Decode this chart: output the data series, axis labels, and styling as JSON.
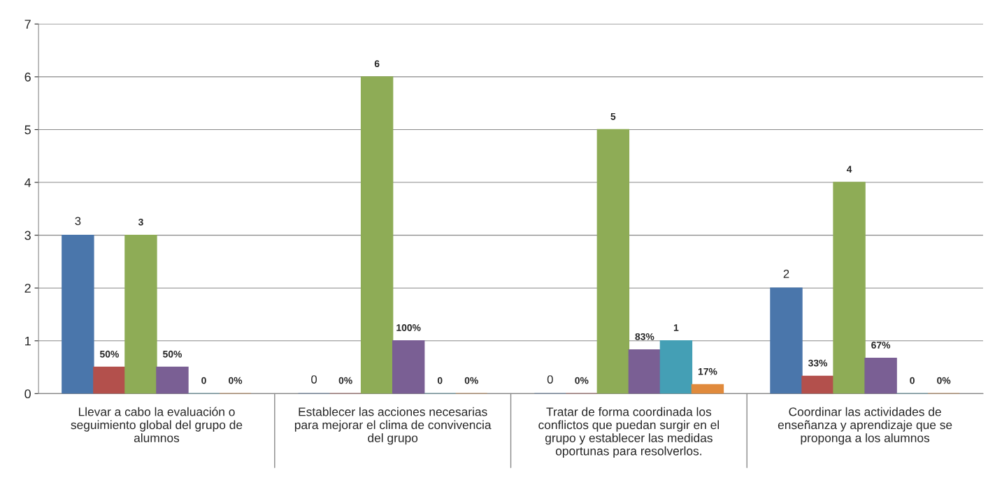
{
  "chart_data": {
    "type": "bar",
    "categories": [
      "Llevar a cabo la evaluación o\nseguimiento global del grupo de\nalumnos",
      "Establecer las acciones necesarias\npara mejorar el clima de convivencia\ndel grupo",
      "Tratar de forma coordinada los\nconflictos que puedan surgir en el\ngrupo y establecer las medidas\noportunas para resolverlos.",
      "Coordinar las actividades de\nenseñanza y aprendizaje que se\nproponga a los alumnos"
    ],
    "series": [
      {
        "color": "#4a76ab",
        "values": [
          3,
          0,
          0,
          2
        ],
        "value_labels": [
          "3",
          "0",
          "0",
          "2"
        ]
      },
      {
        "color": "#b3504c",
        "values": [
          0.5,
          0,
          0,
          0.33
        ],
        "value_labels": [
          "50%",
          "0%",
          "0%",
          "33%"
        ]
      },
      {
        "color": "#8eac56",
        "values": [
          3,
          6,
          5,
          4
        ],
        "value_labels": [
          "3",
          "6",
          "5",
          "4"
        ]
      },
      {
        "color": "#7a5f94",
        "values": [
          0.5,
          1,
          0.83,
          0.67
        ],
        "value_labels": [
          "50%",
          "100%",
          "83%",
          "67%"
        ]
      },
      {
        "color": "#449fb5",
        "values": [
          0,
          0,
          1,
          0
        ],
        "value_labels": [
          "0",
          "0",
          "1",
          "0"
        ]
      },
      {
        "color": "#e08a3c",
        "values": [
          0,
          0,
          0.17,
          0
        ],
        "value_labels": [
          "0%",
          "0%",
          "17%",
          "0%"
        ]
      }
    ],
    "ylim": [
      0,
      7
    ],
    "yticks": [
      0,
      1,
      2,
      3,
      4,
      5,
      6,
      7
    ],
    "grid": "y",
    "legend": false
  }
}
